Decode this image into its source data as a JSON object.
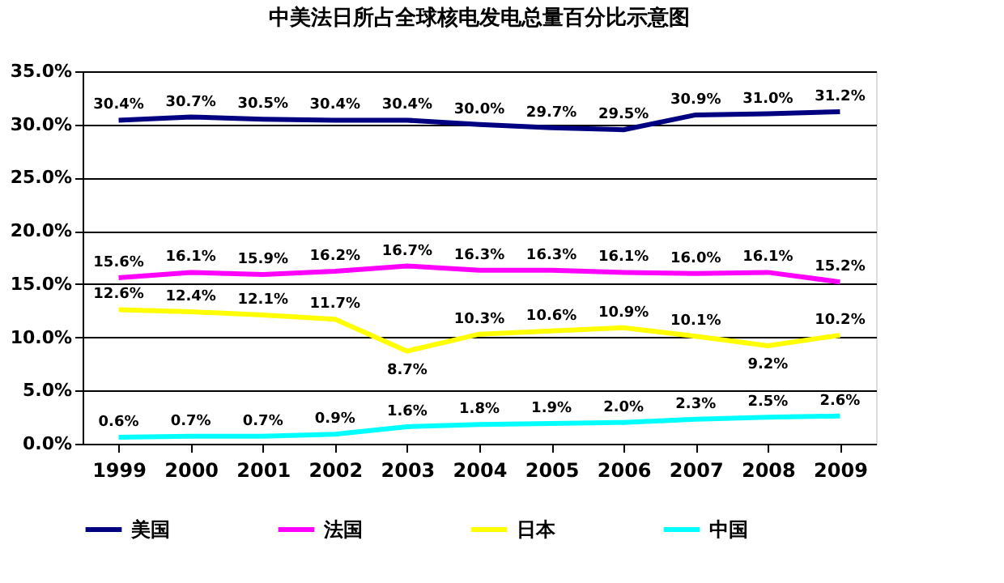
{
  "chart_data": {
    "type": "line",
    "title": "中美法日所占全球核电发电总量百分比示意图",
    "categories": [
      "1999",
      "2000",
      "2001",
      "2002",
      "2003",
      "2004",
      "2005",
      "2006",
      "2007",
      "2008",
      "2009"
    ],
    "series": [
      {
        "name": "美国",
        "color": "#000080",
        "values": [
          30.4,
          30.7,
          30.5,
          30.4,
          30.4,
          30.0,
          29.7,
          29.5,
          30.9,
          31.0,
          31.2
        ],
        "value_labels": [
          "30.4%",
          "30.7%",
          "30.5%",
          "30.4%",
          "30.4%",
          "30.0%",
          "29.7%",
          "29.5%",
          "30.9%",
          "31.0%",
          "31.2%"
        ]
      },
      {
        "name": "法国",
        "color": "#ff00ff",
        "values": [
          15.6,
          16.1,
          15.9,
          16.2,
          16.7,
          16.3,
          16.3,
          16.1,
          16.0,
          16.1,
          15.2
        ],
        "value_labels": [
          "15.6%",
          "16.1%",
          "15.9%",
          "16.2%",
          "16.7%",
          "16.3%",
          "16.3%",
          "16.1%",
          "16.0%",
          "16.1%",
          "15.2%"
        ]
      },
      {
        "name": "日本",
        "color": "#ffff00",
        "values": [
          12.6,
          12.4,
          12.1,
          11.7,
          8.7,
          10.3,
          10.6,
          10.9,
          10.1,
          9.2,
          10.2
        ],
        "value_labels": [
          "12.6%",
          "12.4%",
          "12.1%",
          "11.7%",
          "8.7%",
          "10.3%",
          "10.6%",
          "10.9%",
          "10.1%",
          "9.2%",
          "10.2%"
        ]
      },
      {
        "name": "中国",
        "color": "#00ffff",
        "values": [
          0.6,
          0.7,
          0.7,
          0.9,
          1.6,
          1.8,
          1.9,
          2.0,
          2.3,
          2.5,
          2.6
        ],
        "value_labels": [
          "0.6%",
          "0.7%",
          "0.7%",
          "0.9%",
          "1.6%",
          "1.8%",
          "1.9%",
          "2.0%",
          "2.3%",
          "2.5%",
          "2.6%"
        ]
      }
    ],
    "ylim": [
      0,
      35
    ],
    "yticks": [
      {
        "value": 0,
        "label": "0.0%"
      },
      {
        "value": 5,
        "label": "5.0%"
      },
      {
        "value": 10,
        "label": "10.0%"
      },
      {
        "value": 15,
        "label": "15.0%"
      },
      {
        "value": 20,
        "label": "20.0%"
      },
      {
        "value": 25,
        "label": "25.0%"
      },
      {
        "value": 30,
        "label": "30.0%"
      },
      {
        "value": 35,
        "label": "35.0%"
      }
    ],
    "grid": "y",
    "legend": "bottom",
    "marker": "none",
    "line_style": "solid"
  }
}
